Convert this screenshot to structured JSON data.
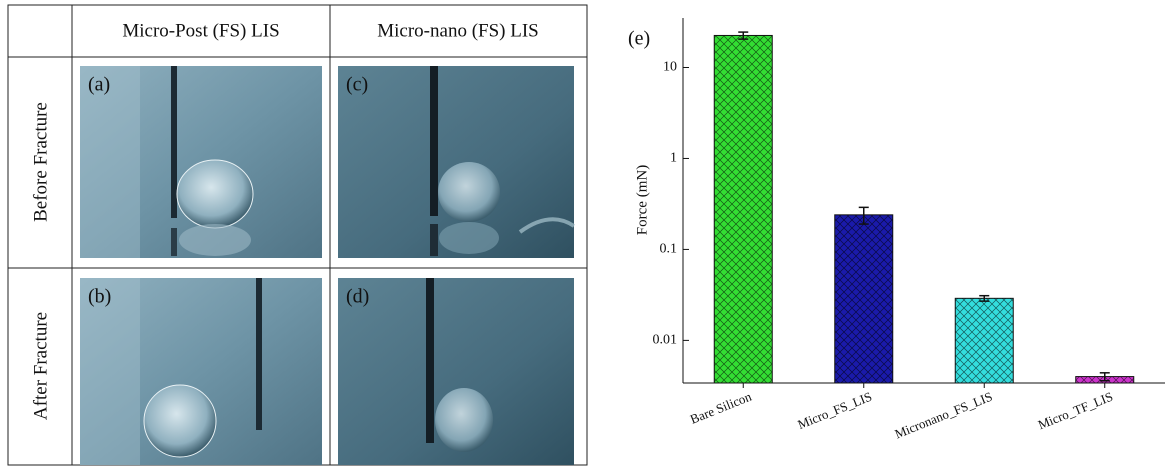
{
  "table": {
    "column_headers": [
      "Micro-Post (FS) LIS",
      "Micro-nano (FS) LIS"
    ],
    "row_headers": [
      "Before Fracture",
      "After Fracture"
    ],
    "panels": [
      [
        "(a)",
        "(c)"
      ],
      [
        "(b)",
        "(d)"
      ]
    ]
  },
  "chart_data": {
    "type": "bar",
    "panel_label": "(e)",
    "y_label": "Force (mN)",
    "categories": [
      "Bare Silicon",
      "Micro_FS_LIS",
      "Micronano_FS_LIS",
      "Micro_TF_LIS"
    ],
    "values": [
      22.5,
      0.24,
      0.029,
      0.004
    ],
    "errors": [
      2,
      0.05,
      0.002,
      0.0004
    ],
    "colors": [
      "#33dd33",
      "#1a1aaa",
      "#33dddd",
      "#cc33cc"
    ],
    "ylim": [
      0.0034,
      35
    ],
    "yticks": [
      0.01,
      0.1,
      1,
      10
    ],
    "log_y": true
  }
}
